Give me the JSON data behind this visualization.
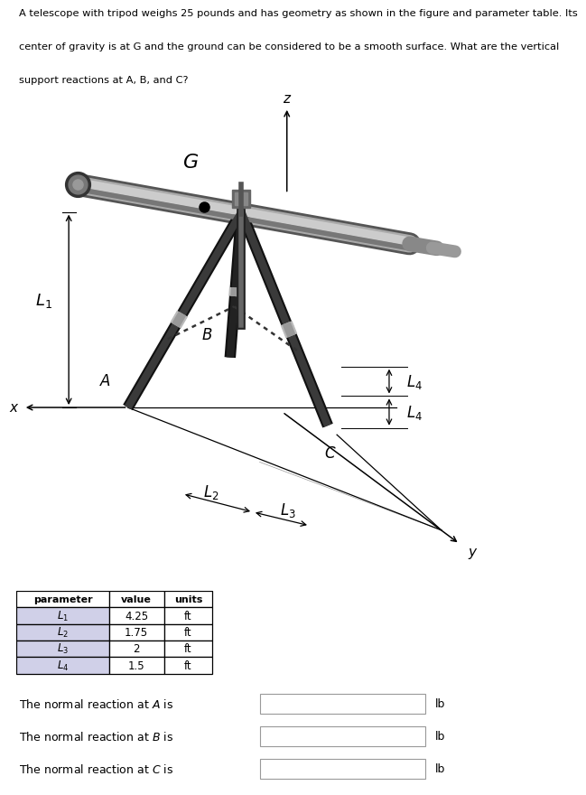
{
  "title_text": "A telescope with tripod weighs 25 pounds and has geometry as shown in the figure and parameter table. Its\ncenter of gravity is at G and the ground can be considered to be a smooth surface. What are the vertical\nsupport reactions at A, B, and C?",
  "title_fontsize": 8.2,
  "background_color": "#ffffff",
  "table_headers": [
    "parameter",
    "value",
    "units"
  ],
  "table_rows": [
    [
      "$L_1$",
      "4.25",
      "ft"
    ],
    [
      "$L_2$",
      "1.75",
      "ft"
    ],
    [
      "$L_3$",
      "2",
      "ft"
    ],
    [
      "$L_4$",
      "1.5",
      "ft"
    ]
  ],
  "param_col_color": "#d0d0e8",
  "header_color": "#ffffff",
  "label_fontsize": 11,
  "dim_fontsize": 12,
  "body_fontsize": 9,
  "reaction_labels": [
    "A",
    "B",
    "C"
  ],
  "reaction_unit": "lb"
}
